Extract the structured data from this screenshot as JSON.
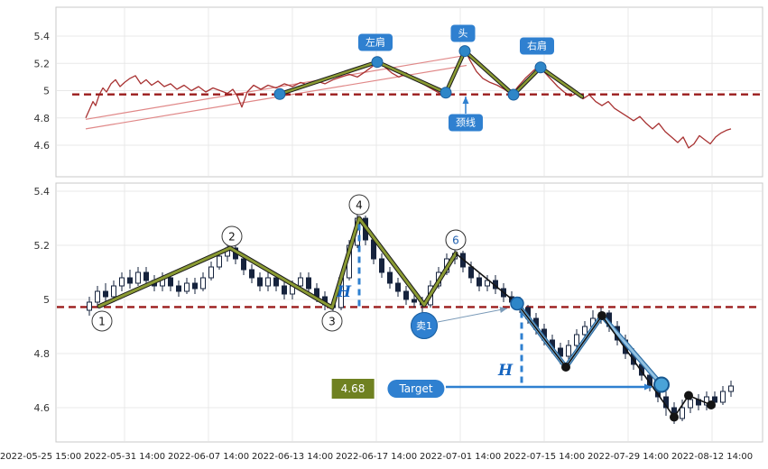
{
  "axes": {
    "yticks": [
      "5.4",
      "5.2",
      "5",
      "4.8",
      "4.6"
    ],
    "xticks": [
      "2022-05-25 15:00",
      "2022-05-31 14:00",
      "2022-06-07 14:00",
      "2022-06-13 14:00",
      "2022-06-17 14:00",
      "2022-07-01 14:00",
      "2022-07-15 14:00",
      "2022-07-29 14:00",
      "2022-08-12 14:00"
    ]
  },
  "chart_data": [
    {
      "type": "line",
      "name": "price-history-top-panel",
      "title": "",
      "ylim": [
        4.4,
        5.6
      ],
      "color": "#a83232",
      "points": [
        [
          95,
          4.8
        ],
        [
          99,
          4.86
        ],
        [
          103,
          4.92
        ],
        [
          106,
          4.89
        ],
        [
          110,
          4.97
        ],
        [
          114,
          5.02
        ],
        [
          118,
          4.99
        ],
        [
          123,
          5.05
        ],
        [
          128,
          5.08
        ],
        [
          133,
          5.03
        ],
        [
          138,
          5.06
        ],
        [
          144,
          5.09
        ],
        [
          150,
          5.11
        ],
        [
          156,
          5.05
        ],
        [
          162,
          5.08
        ],
        [
          168,
          5.04
        ],
        [
          175,
          5.07
        ],
        [
          182,
          5.03
        ],
        [
          189,
          5.05
        ],
        [
          196,
          5.01
        ],
        [
          204,
          5.04
        ],
        [
          212,
          5.0
        ],
        [
          220,
          5.03
        ],
        [
          228,
          4.99
        ],
        [
          236,
          5.02
        ],
        [
          244,
          5.0
        ],
        [
          252,
          4.98
        ],
        [
          258,
          5.01
        ],
        [
          263,
          4.96
        ],
        [
          268,
          4.88
        ],
        [
          274,
          4.99
        ],
        [
          281,
          5.04
        ],
        [
          289,
          5.01
        ],
        [
          297,
          5.04
        ],
        [
          306,
          5.02
        ],
        [
          315,
          5.05
        ],
        [
          324,
          5.03
        ],
        [
          333,
          5.06
        ],
        [
          342,
          5.04
        ],
        [
          351,
          5.07
        ],
        [
          360,
          5.05
        ],
        [
          369,
          5.08
        ],
        [
          378,
          5.1
        ],
        [
          387,
          5.12
        ],
        [
          396,
          5.1
        ],
        [
          405,
          5.14
        ],
        [
          413,
          5.18
        ],
        [
          420,
          5.22
        ],
        [
          427,
          5.17
        ],
        [
          434,
          5.13
        ],
        [
          442,
          5.1
        ],
        [
          450,
          5.13
        ],
        [
          458,
          5.09
        ],
        [
          466,
          5.06
        ],
        [
          474,
          5.03
        ],
        [
          482,
          5.0
        ],
        [
          490,
          4.97
        ],
        [
          497,
          5.03
        ],
        [
          504,
          5.12
        ],
        [
          510,
          5.21
        ],
        [
          515,
          5.3
        ],
        [
          521,
          5.22
        ],
        [
          528,
          5.14
        ],
        [
          535,
          5.09
        ],
        [
          543,
          5.06
        ],
        [
          551,
          5.04
        ],
        [
          559,
          5.01
        ],
        [
          567,
          4.97
        ],
        [
          574,
          5.03
        ],
        [
          582,
          5.09
        ],
        [
          590,
          5.14
        ],
        [
          597,
          5.18
        ],
        [
          604,
          5.13
        ],
        [
          611,
          5.08
        ],
        [
          618,
          5.03
        ],
        [
          625,
          4.99
        ],
        [
          632,
          4.96
        ],
        [
          639,
          4.98
        ],
        [
          646,
          4.94
        ],
        [
          653,
          4.97
        ],
        [
          660,
          4.92
        ],
        [
          667,
          4.89
        ],
        [
          674,
          4.92
        ],
        [
          681,
          4.87
        ],
        [
          688,
          4.84
        ],
        [
          695,
          4.81
        ],
        [
          702,
          4.78
        ],
        [
          709,
          4.81
        ],
        [
          716,
          4.76
        ],
        [
          723,
          4.72
        ],
        [
          730,
          4.76
        ],
        [
          737,
          4.7
        ],
        [
          744,
          4.66
        ],
        [
          751,
          4.62
        ],
        [
          757,
          4.66
        ],
        [
          763,
          4.58
        ],
        [
          769,
          4.61
        ],
        [
          775,
          4.67
        ],
        [
          781,
          4.64
        ],
        [
          787,
          4.61
        ],
        [
          793,
          4.66
        ],
        [
          799,
          4.69
        ],
        [
          805,
          4.71
        ],
        [
          810,
          4.72
        ]
      ]
    },
    {
      "type": "candlestick",
      "name": "ohlc-candles-bottom-panel",
      "ylim": [
        4.45,
        5.45
      ],
      "color": "#16233d",
      "candles": [
        [
          99,
          4.96,
          5.01,
          4.94,
          4.99
        ],
        [
          108,
          4.99,
          5.05,
          4.97,
          5.03
        ],
        [
          117,
          5.03,
          5.06,
          4.99,
          5.01
        ],
        [
          126,
          5.01,
          5.07,
          5.0,
          5.05
        ],
        [
          135,
          5.05,
          5.1,
          5.03,
          5.08
        ],
        [
          144,
          5.08,
          5.11,
          5.04,
          5.06
        ],
        [
          153,
          5.06,
          5.12,
          5.05,
          5.1
        ],
        [
          162,
          5.1,
          5.12,
          5.05,
          5.07
        ],
        [
          171,
          5.07,
          5.09,
          5.03,
          5.05
        ],
        [
          180,
          5.05,
          5.1,
          5.03,
          5.08
        ],
        [
          189,
          5.08,
          5.1,
          5.03,
          5.05
        ],
        [
          198,
          5.05,
          5.07,
          5.01,
          5.03
        ],
        [
          207,
          5.03,
          5.08,
          5.02,
          5.06
        ],
        [
          216,
          5.06,
          5.08,
          5.02,
          5.04
        ],
        [
          225,
          5.04,
          5.1,
          5.03,
          5.08
        ],
        [
          234,
          5.08,
          5.14,
          5.07,
          5.12
        ],
        [
          243,
          5.12,
          5.18,
          5.11,
          5.16
        ],
        [
          252,
          5.16,
          5.21,
          5.14,
          5.19
        ],
        [
          261,
          5.19,
          5.21,
          5.13,
          5.15
        ],
        [
          270,
          5.15,
          5.17,
          5.09,
          5.11
        ],
        [
          279,
          5.11,
          5.13,
          5.06,
          5.08
        ],
        [
          288,
          5.08,
          5.1,
          5.03,
          5.05
        ],
        [
          297,
          5.05,
          5.1,
          5.03,
          5.08
        ],
        [
          306,
          5.08,
          5.1,
          5.03,
          5.05
        ],
        [
          315,
          5.05,
          5.07,
          5.0,
          5.02
        ],
        [
          324,
          5.02,
          5.07,
          5.0,
          5.05
        ],
        [
          333,
          5.05,
          5.1,
          5.03,
          5.08
        ],
        [
          342,
          5.08,
          5.1,
          5.02,
          5.04
        ],
        [
          351,
          5.04,
          5.06,
          4.99,
          5.01
        ],
        [
          360,
          5.01,
          5.03,
          4.96,
          4.98
        ],
        [
          369,
          4.98,
          5.0,
          4.94,
          4.97
        ],
        [
          378,
          4.97,
          5.1,
          4.96,
          5.08
        ],
        [
          387,
          5.08,
          5.22,
          5.07,
          5.2
        ],
        [
          396,
          5.2,
          5.32,
          5.19,
          5.3
        ],
        [
          405,
          5.3,
          5.31,
          5.2,
          5.22
        ],
        [
          414,
          5.22,
          5.24,
          5.13,
          5.15
        ],
        [
          423,
          5.15,
          5.17,
          5.08,
          5.1
        ],
        [
          432,
          5.1,
          5.12,
          5.04,
          5.06
        ],
        [
          441,
          5.06,
          5.08,
          5.01,
          5.03
        ],
        [
          450,
          5.03,
          5.05,
          4.98,
          5.0
        ],
        [
          459,
          5.0,
          5.02,
          4.97,
          4.99
        ],
        [
          468,
          4.99,
          5.01,
          4.95,
          4.98
        ],
        [
          477,
          4.98,
          5.07,
          4.97,
          5.05
        ],
        [
          486,
          5.05,
          5.12,
          5.04,
          5.1
        ],
        [
          495,
          5.1,
          5.17,
          5.09,
          5.15
        ],
        [
          504,
          5.15,
          5.19,
          5.13,
          5.17
        ],
        [
          513,
          5.17,
          5.18,
          5.1,
          5.12
        ],
        [
          522,
          5.12,
          5.14,
          5.06,
          5.08
        ],
        [
          531,
          5.08,
          5.1,
          5.03,
          5.05
        ],
        [
          540,
          5.05,
          5.09,
          5.03,
          5.07
        ],
        [
          549,
          5.07,
          5.09,
          5.02,
          5.04
        ],
        [
          558,
          5.04,
          5.06,
          4.99,
          5.01
        ],
        [
          567,
          5.01,
          5.03,
          4.97,
          4.99
        ],
        [
          576,
          4.99,
          5.01,
          4.95,
          4.97
        ],
        [
          585,
          4.97,
          4.98,
          4.91,
          4.93
        ],
        [
          594,
          4.93,
          4.95,
          4.87,
          4.89
        ],
        [
          603,
          4.89,
          4.91,
          4.83,
          4.85
        ],
        [
          612,
          4.85,
          4.87,
          4.8,
          4.82
        ],
        [
          621,
          4.82,
          4.84,
          4.76,
          4.79
        ],
        [
          630,
          4.79,
          4.85,
          4.77,
          4.83
        ],
        [
          639,
          4.83,
          4.89,
          4.81,
          4.87
        ],
        [
          648,
          4.87,
          4.92,
          4.85,
          4.9
        ],
        [
          657,
          4.9,
          4.96,
          4.88,
          4.93
        ],
        [
          666,
          4.93,
          4.97,
          4.91,
          4.95
        ],
        [
          675,
          4.95,
          4.96,
          4.88,
          4.9
        ],
        [
          684,
          4.9,
          4.92,
          4.83,
          4.85
        ],
        [
          693,
          4.85,
          4.87,
          4.78,
          4.8
        ],
        [
          702,
          4.8,
          4.82,
          4.74,
          4.76
        ],
        [
          711,
          4.76,
          4.78,
          4.7,
          4.72
        ],
        [
          720,
          4.72,
          4.74,
          4.66,
          4.68
        ],
        [
          729,
          4.68,
          4.7,
          4.62,
          4.64
        ],
        [
          738,
          4.64,
          4.66,
          4.57,
          4.6
        ],
        [
          747,
          4.6,
          4.62,
          4.54,
          4.56
        ],
        [
          756,
          4.56,
          4.63,
          4.55,
          4.6
        ],
        [
          765,
          4.6,
          4.65,
          4.58,
          4.63
        ],
        [
          774,
          4.63,
          4.65,
          4.59,
          4.61
        ],
        [
          783,
          4.61,
          4.66,
          4.59,
          4.64
        ],
        [
          792,
          4.64,
          4.66,
          4.6,
          4.62
        ],
        [
          801,
          4.62,
          4.68,
          4.61,
          4.66
        ],
        [
          810,
          4.66,
          4.7,
          4.64,
          4.68
        ]
      ]
    }
  ],
  "annotations": {
    "neckline": {
      "price": 4.972,
      "color": "#9b1c1c"
    },
    "channel": {
      "color": "#e08888",
      "lines": [
        [
          [
            95,
            4.79
          ],
          [
            517,
            5.26
          ]
        ],
        [
          [
            95,
            4.72
          ],
          [
            517,
            5.185
          ]
        ]
      ]
    },
    "zigzag_top": {
      "color": "#8a9a33",
      "outline": "#1a1a1a",
      "dot_color": "#2e86c8",
      "dot_count": 6,
      "points": [
        [
          310,
          4.975
        ],
        [
          418,
          5.21
        ],
        [
          494,
          4.985
        ],
        [
          515,
          5.29
        ],
        [
          569,
          4.97
        ],
        [
          599,
          5.17
        ],
        [
          645,
          4.955
        ]
      ]
    },
    "zigzag_bottom": {
      "color": "#8a9a33",
      "outline": "#1a1a1a",
      "points": [
        [
          110,
          4.975
        ],
        [
          255,
          5.19
        ],
        [
          368,
          4.97
        ],
        [
          398,
          5.3
        ],
        [
          470,
          4.98
        ],
        [
          505,
          5.17
        ]
      ]
    },
    "projection_black": {
      "color": "#141414",
      "points": [
        [
          505,
          5.17
        ],
        [
          573,
          4.985
        ],
        [
          627,
          4.75
        ],
        [
          667,
          4.94
        ],
        [
          747,
          4.565
        ],
        [
          763,
          4.645
        ],
        [
          788,
          4.61
        ]
      ],
      "dots": [
        [
          627,
          4.75
        ],
        [
          667,
          4.94
        ],
        [
          747,
          4.565
        ],
        [
          763,
          4.645
        ],
        [
          788,
          4.61
        ]
      ]
    },
    "projection_blue": {
      "edge": "#2e6da4",
      "core": "#93c2e2",
      "points": [
        [
          573,
          4.985
        ],
        [
          627,
          4.75
        ],
        [
          667,
          4.94
        ],
        [
          733,
          4.685
        ]
      ],
      "start_dot": [
        573,
        4.985
      ],
      "target_dot": [
        733,
        4.685
      ]
    },
    "h_lines": {
      "color": "#2f80d0",
      "segments": [
        {
          "x": 398,
          "p1": 4.975,
          "p2": 5.295
        },
        {
          "x": 578,
          "p1": 4.955,
          "p2": 4.69
        }
      ]
    },
    "labels": {
      "left_shoulder": "左肩",
      "head": "头",
      "right_shoulder": "右肩",
      "neckline": "颈线",
      "sell": "卖1",
      "h": "H",
      "target": "Target",
      "target_value": "4.68"
    },
    "numbers": [
      "1",
      "2",
      "3",
      "4",
      "6"
    ],
    "colors": {
      "tag_bg": "#2f80d0",
      "value_box_bg": "#6f8121",
      "grid": "#e8e8e8",
      "panel_border": "#c8c8c8"
    }
  }
}
